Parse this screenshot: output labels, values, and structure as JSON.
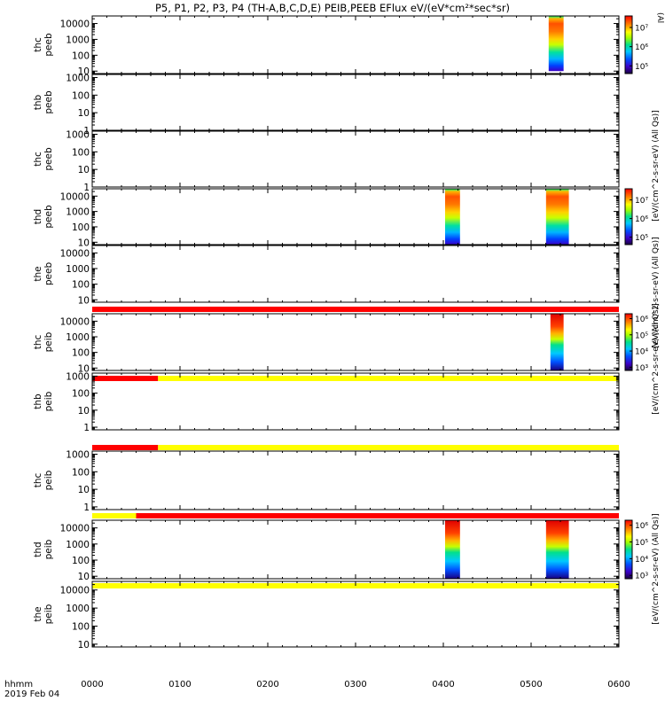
{
  "header": {
    "title": "P5, P1, P2, P3, P4 (TH-A,B,C,D,E) PEIB,PEEB EFlux eV/(eV*cm²*sec*sr)"
  },
  "time_axis": {
    "row_label_1": "hhmm",
    "row_label_2": "2019 Feb 04",
    "ticks": [
      "0000",
      "0100",
      "0200",
      "0300",
      "0400",
      "0500",
      "0600"
    ],
    "tick_hours": [
      0,
      1,
      2,
      3,
      4,
      5,
      6
    ],
    "range_hours": [
      0,
      6
    ]
  },
  "colorbar_labels": {
    "upper": "[eV/(cm^2-s-sr-eV) (All Qs)]",
    "lower": "[eV/(cm^2-s-sr-eV) (All Qs)]",
    "top_clipped": "(Al",
    "stacked_upper": "[eV/(cm^2-s-sr-eV) (All Qs)]",
    "stacked_lower": "[eV/(cm^2-s-sr-eV) (All Qs)]"
  },
  "chart_data": {
    "type": "heatmap",
    "colormap": "rainbow",
    "x_units": "hours UT, 2019 Feb 04",
    "scale": "log",
    "panels": [
      {
        "probe": "thc",
        "product": "peeb",
        "ytick_labels": [
          "10",
          "100",
          "1000",
          "10000"
        ],
        "ytick_values": [
          10,
          100,
          1000,
          10000
        ],
        "ylim": [
          7,
          30000
        ],
        "colorbar": {
          "ticks": [
            "10⁷",
            "10⁶",
            "10⁵"
          ],
          "tick_exponents": [
            7,
            6,
            5
          ],
          "clim_exponents": [
            4.6,
            7.6
          ]
        },
        "bursts": [
          {
            "x_range": [
              5.2,
              5.37
            ],
            "y_range": [
              10,
              30000
            ]
          }
        ],
        "status_bar": null
      },
      {
        "probe": "thb",
        "product": "peeb",
        "ytick_labels": [
          "1",
          "10",
          "100",
          "1000"
        ],
        "ytick_values": [
          1,
          10,
          100,
          1000
        ],
        "ylim": [
          1,
          1500
        ],
        "colorbar": null,
        "bursts": [],
        "status_bar": null
      },
      {
        "probe": "thc",
        "product": "peeb",
        "ytick_labels": [
          "1",
          "10",
          "100",
          "1000"
        ],
        "ytick_values": [
          1,
          10,
          100,
          1000
        ],
        "ylim": [
          1,
          1500
        ],
        "colorbar": null,
        "bursts": [],
        "status_bar": null
      },
      {
        "probe": "thd",
        "product": "peeb",
        "ytick_labels": [
          "10",
          "100",
          "1000",
          "10000"
        ],
        "ytick_values": [
          10,
          100,
          1000,
          10000
        ],
        "ylim": [
          7,
          30000
        ],
        "colorbar": {
          "ticks": [
            "10⁷",
            "10⁶",
            "10⁵"
          ],
          "tick_exponents": [
            7,
            6,
            5
          ],
          "clim_exponents": [
            4.6,
            7.6
          ]
        },
        "bursts": [
          {
            "x_range": [
              4.02,
              4.19
            ],
            "y_range": [
              7,
              30000
            ]
          },
          {
            "x_range": [
              5.17,
              5.43
            ],
            "y_range": [
              7,
              30000
            ]
          }
        ],
        "status_bar": null
      },
      {
        "probe": "the",
        "product": "peeb",
        "ytick_labels": [
          "10",
          "100",
          "1000",
          "10000"
        ],
        "ytick_values": [
          10,
          100,
          1000,
          10000
        ],
        "ylim": [
          7,
          30000
        ],
        "colorbar": null,
        "bursts": [],
        "status_bar": "red"
      },
      {
        "probe": "thc",
        "product": "peib",
        "ytick_labels": [
          "10",
          "100",
          "1000",
          "10000"
        ],
        "ytick_values": [
          10,
          100,
          1000,
          10000
        ],
        "ylim": [
          7,
          30000
        ],
        "colorbar": {
          "ticks": [
            "10⁶",
            "10⁵",
            "10⁴",
            "10³"
          ],
          "tick_exponents": [
            6,
            5,
            4,
            3
          ],
          "clim_exponents": [
            2.8,
            6.3
          ]
        },
        "bursts": [
          {
            "x_range": [
              5.22,
              5.37
            ],
            "y_range": [
              7,
              30000
            ]
          }
        ],
        "status_bar": "red-then-yellow"
      },
      {
        "probe": "thb",
        "product": "peib",
        "ytick_labels": [
          "1",
          "10",
          "100",
          "1000"
        ],
        "ytick_values": [
          1,
          10,
          100,
          1000
        ],
        "ylim": [
          0.7,
          1500
        ],
        "colorbar": null,
        "bursts": [],
        "status_bar": "red-then-yellow"
      },
      {
        "probe": "thc",
        "product": "peib",
        "ytick_labels": [
          "1",
          "10",
          "100",
          "1000"
        ],
        "ytick_values": [
          1,
          10,
          100,
          1000
        ],
        "ylim": [
          0.7,
          1500
        ],
        "colorbar": null,
        "bursts": [],
        "status_bar": "yellow-then-red"
      },
      {
        "probe": "thd",
        "product": "peib",
        "ytick_labels": [
          "10",
          "100",
          "1000",
          "10000"
        ],
        "ytick_values": [
          10,
          100,
          1000,
          10000
        ],
        "ylim": [
          7,
          30000
        ],
        "colorbar": {
          "ticks": [
            "10⁶",
            "10⁵",
            "10⁴",
            "10³"
          ],
          "tick_exponents": [
            6,
            5,
            4,
            3
          ],
          "clim_exponents": [
            2.8,
            6.3
          ]
        },
        "bursts": [
          {
            "x_range": [
              4.02,
              4.19
            ],
            "y_range": [
              7,
              30000
            ]
          },
          {
            "x_range": [
              5.17,
              5.43
            ],
            "y_range": [
              7,
              30000
            ]
          }
        ],
        "status_bar": "yellow"
      },
      {
        "probe": "the",
        "product": "peib",
        "ytick_labels": [
          "10",
          "100",
          "1000",
          "10000"
        ],
        "ytick_values": [
          10,
          100,
          1000,
          10000
        ],
        "ylim": [
          7,
          30000
        ],
        "colorbar": null,
        "bursts": [],
        "status_bar": null
      }
    ],
    "status_bars": [
      {
        "after_panel": 5,
        "segments": [
          {
            "x_range": [
              0,
              6
            ],
            "color": "red"
          }
        ]
      },
      {
        "after_panel": 6,
        "segments": [
          {
            "x_range": [
              0,
              0.75
            ],
            "color": "red"
          },
          {
            "x_range": [
              0.75,
              6
            ],
            "color": "yellow"
          }
        ]
      },
      {
        "after_panel": 7,
        "segments": [
          {
            "x_range": [
              0,
              0.75
            ],
            "color": "red"
          },
          {
            "x_range": [
              0.75,
              6
            ],
            "color": "yellow"
          }
        ]
      },
      {
        "after_panel": 8,
        "segments": [
          {
            "x_range": [
              0,
              0.5
            ],
            "color": "yellow"
          },
          {
            "x_range": [
              0.5,
              6
            ],
            "color": "red"
          }
        ]
      },
      {
        "after_panel": 9,
        "segments": [
          {
            "x_range": [
              0,
              6
            ],
            "color": "yellow"
          }
        ]
      }
    ]
  },
  "colors": {
    "red": "#ff0000",
    "yellow": "#ffff00",
    "axis": "#000000",
    "background": "#ffffff"
  }
}
